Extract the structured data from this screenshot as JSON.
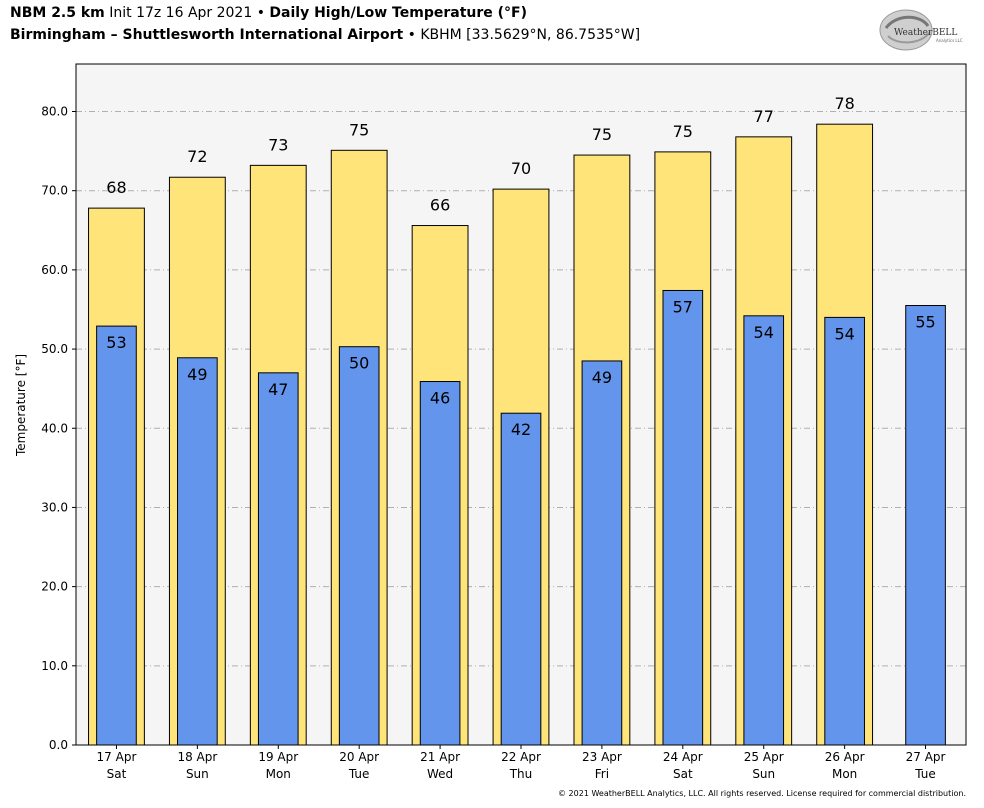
{
  "header": {
    "model": "NBM 2.5 km",
    "init": "Init 17z 16 Apr 2021",
    "sep1": "•",
    "product": "Daily High/Low Temperature (°F)",
    "location": "Birmingham – Shuttlesworth International Airport",
    "sep2": "•",
    "station": "KBHM [33.5629°N, 86.7535°W]"
  },
  "logo": {
    "text_main": "WeatherBELL",
    "text_sub": "Analytics LLC"
  },
  "copyright": "© 2021 WeatherBELL Analytics, LLC. All rights reserved. License required for commercial distribution.",
  "chart_data": {
    "type": "bar",
    "ylabel": "Temperature [°F]",
    "ylim": [
      0,
      86
    ],
    "yticks": [
      "0.0",
      "10.0",
      "20.0",
      "30.0",
      "40.0",
      "50.0",
      "60.0",
      "70.0",
      "80.0"
    ],
    "ytick_values": [
      0,
      10,
      20,
      30,
      40,
      50,
      60,
      70,
      80
    ],
    "grid": true,
    "categories": [
      {
        "date": "17 Apr",
        "day": "Sat"
      },
      {
        "date": "18 Apr",
        "day": "Sun"
      },
      {
        "date": "19 Apr",
        "day": "Mon"
      },
      {
        "date": "20 Apr",
        "day": "Tue"
      },
      {
        "date": "21 Apr",
        "day": "Wed"
      },
      {
        "date": "22 Apr",
        "day": "Thu"
      },
      {
        "date": "23 Apr",
        "day": "Fri"
      },
      {
        "date": "24 Apr",
        "day": "Sat"
      },
      {
        "date": "25 Apr",
        "day": "Sun"
      },
      {
        "date": "26 Apr",
        "day": "Mon"
      },
      {
        "date": "27 Apr",
        "day": "Tue"
      }
    ],
    "series": [
      {
        "key": "high",
        "color": "#ffe47a",
        "values": [
          67.8,
          71.7,
          73.2,
          75.1,
          65.6,
          70.2,
          74.5,
          74.9,
          76.8,
          78.4,
          null
        ],
        "labels": [
          "68",
          "72",
          "73",
          "75",
          "66",
          "70",
          "75",
          "75",
          "77",
          "78",
          ""
        ]
      },
      {
        "key": "low",
        "color": "#6495ed",
        "values": [
          52.9,
          48.9,
          47.0,
          50.3,
          45.9,
          41.9,
          48.5,
          57.4,
          54.2,
          54.0,
          55.5
        ],
        "labels": [
          "53",
          "49",
          "47",
          "50",
          "46",
          "42",
          "49",
          "57",
          "54",
          "54",
          "55"
        ]
      }
    ]
  }
}
